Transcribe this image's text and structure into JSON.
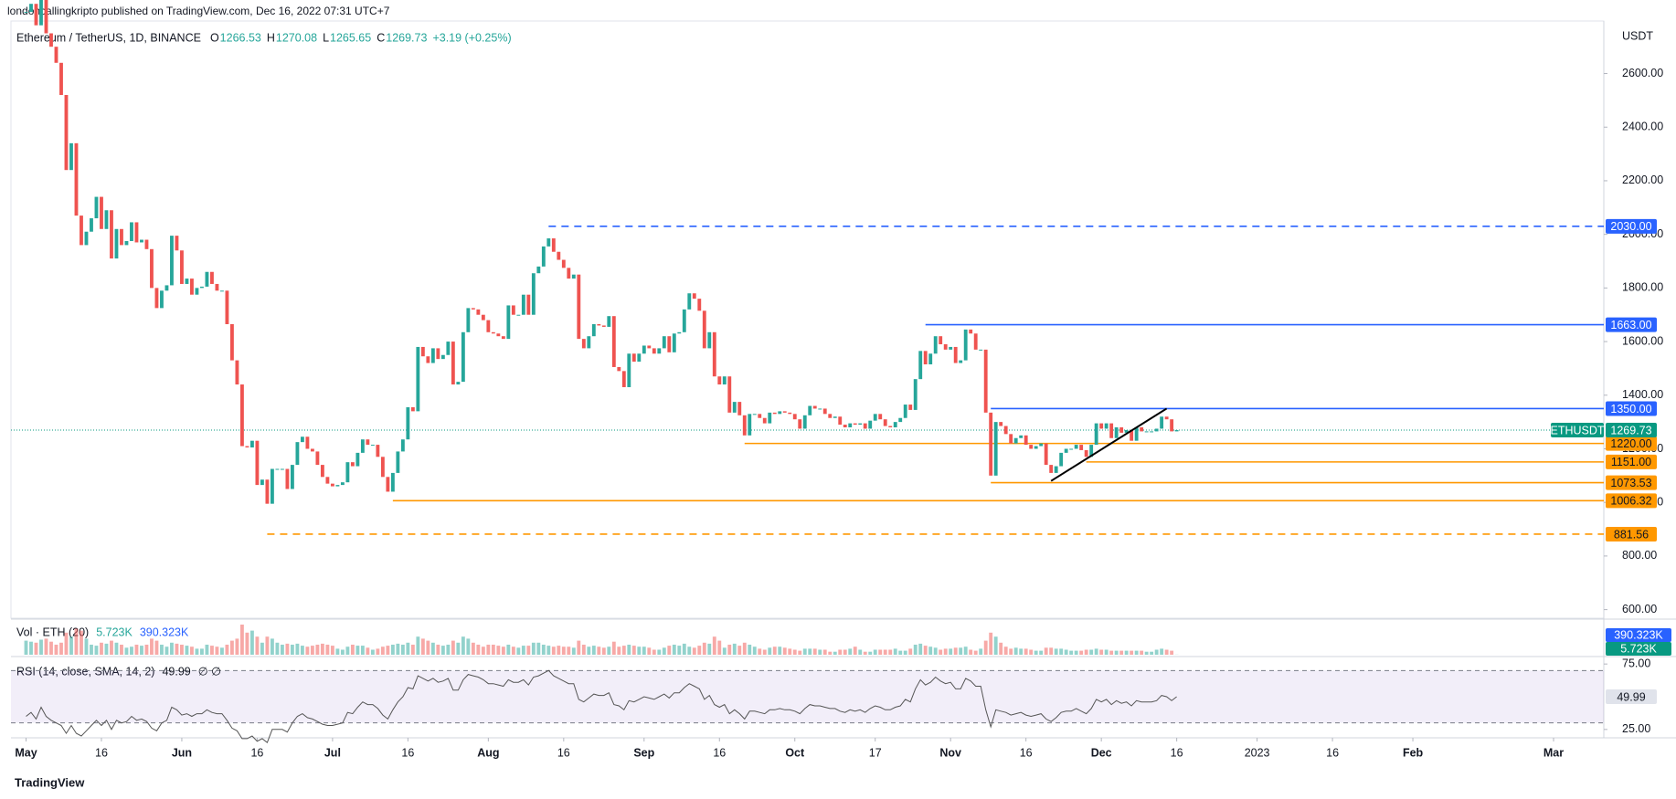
{
  "header": {
    "publisher": "londoncallingkripto published on TradingView.com, Dec 16, 2022 07:31 UTC+7",
    "footer": "TradingView"
  },
  "chart_data": {
    "type": "candlestick",
    "title": "Ethereum / TetherUS, 1D, BINANCE",
    "ohlc_legend": [
      {
        "label": "O",
        "value": "1266.53"
      },
      {
        "label": "H",
        "value": "1270.08"
      },
      {
        "label": "L",
        "value": "1265.65"
      },
      {
        "label": "C",
        "value": "1269.73"
      }
    ],
    "change": "+3.19 (+0.25%)",
    "currency": "USDT",
    "symbol": "ETHUSDT",
    "last_price": 1269.73,
    "up_color": "#26a69a",
    "down_color": "#ef5350",
    "closes": [
      2830,
      2860,
      2780,
      2940,
      2750,
      2700,
      2640,
      2520,
      2240,
      2340,
      2070,
      1960,
      2010,
      2060,
      2140,
      2020,
      2090,
      1910,
      2020,
      1960,
      1975,
      2045,
      1970,
      1980,
      1945,
      1800,
      1725,
      1790,
      1810,
      1995,
      1940,
      1815,
      1835,
      1775,
      1800,
      1805,
      1860,
      1815,
      1790,
      1790,
      1665,
      1530,
      1440,
      1210,
      1205,
      1230,
      1065,
      1085,
      995,
      1125,
      1125,
      1125,
      1050,
      1140,
      1225,
      1245,
      1200,
      1190,
      1140,
      1095,
      1070,
      1060,
      1065,
      1075,
      1150,
      1135,
      1185,
      1235,
      1215,
      1215,
      1170,
      1095,
      1040,
      1110,
      1190,
      1235,
      1355,
      1340,
      1580,
      1545,
      1520,
      1575,
      1535,
      1550,
      1600,
      1440,
      1450,
      1635,
      1725,
      1720,
      1700,
      1680,
      1635,
      1630,
      1620,
      1610,
      1735,
      1700,
      1700,
      1775,
      1700,
      1855,
      1880,
      1955,
      1985,
      1935,
      1905,
      1875,
      1835,
      1850,
      1610,
      1575,
      1620,
      1665,
      1660,
      1655,
      1695,
      1505,
      1490,
      1430,
      1555,
      1525,
      1555,
      1585,
      1575,
      1555,
      1575,
      1620,
      1560,
      1630,
      1635,
      1720,
      1780,
      1760,
      1715,
      1575,
      1635,
      1470,
      1440,
      1470,
      1335,
      1375,
      1325,
      1250,
      1330,
      1330,
      1315,
      1295,
      1335,
      1330,
      1340,
      1335,
      1330,
      1310,
      1275,
      1325,
      1360,
      1350,
      1350,
      1330,
      1315,
      1320,
      1290,
      1280,
      1295,
      1290,
      1295,
      1275,
      1305,
      1330,
      1310,
      1285,
      1280,
      1300,
      1315,
      1365,
      1345,
      1460,
      1565,
      1515,
      1555,
      1620,
      1590,
      1570,
      1580,
      1520,
      1530,
      1645,
      1630,
      1570,
      1570,
      1335,
      1100,
      1300,
      1285,
      1255,
      1220,
      1240,
      1250,
      1215,
      1200,
      1210,
      1220,
      1140,
      1110,
      1135,
      1185,
      1200,
      1200,
      1215,
      1195,
      1170,
      1215,
      1295,
      1275,
      1295,
      1240,
      1280,
      1260,
      1270,
      1230,
      1280,
      1265,
      1265,
      1265,
      1275,
      1320,
      1310,
      1265,
      1269.73
    ],
    "xlim": [
      -3,
      314
    ],
    "xticks": [
      {
        "value": 0,
        "label": "May"
      },
      {
        "value": 15,
        "label": "16"
      },
      {
        "value": 31,
        "label": "Jun"
      },
      {
        "value": 46,
        "label": "16"
      },
      {
        "value": 61,
        "label": "Jul"
      },
      {
        "value": 76,
        "label": "16"
      },
      {
        "value": 92,
        "label": "Aug"
      },
      {
        "value": 107,
        "label": "16"
      },
      {
        "value": 123,
        "label": "Sep"
      },
      {
        "value": 138,
        "label": "16"
      },
      {
        "value": 153,
        "label": "Oct"
      },
      {
        "value": 169,
        "label": "17"
      },
      {
        "value": 184,
        "label": "Nov"
      },
      {
        "value": 199,
        "label": "16"
      },
      {
        "value": 214,
        "label": "Dec"
      },
      {
        "value": 229,
        "label": "16"
      },
      {
        "value": 245,
        "label": "2023"
      },
      {
        "value": 260,
        "label": "16"
      },
      {
        "value": 276,
        "label": "Feb"
      },
      {
        "value": 304,
        "label": "Mar"
      }
    ],
    "ylim": [
      568,
      2796
    ],
    "yticks": [
      {
        "value": 600,
        "label": "600.00"
      },
      {
        "value": 800,
        "label": "800.00"
      },
      {
        "value": 1000,
        "label": "1000.00"
      },
      {
        "value": 1200,
        "label": "1200.00"
      },
      {
        "value": 1400,
        "label": "1400.00"
      },
      {
        "value": 1600,
        "label": "1600.00"
      },
      {
        "value": 1800,
        "label": "1800.00"
      },
      {
        "value": 2000,
        "label": "2000.00"
      },
      {
        "value": 2200,
        "label": "2200.00"
      },
      {
        "value": 2400,
        "label": "2400.00"
      },
      {
        "value": 2600,
        "label": "2600.00"
      }
    ],
    "levels": [
      {
        "value": 2030,
        "label": "2030.00",
        "from_day": 104,
        "color": "#2962ff",
        "dashed": true
      },
      {
        "value": 1663,
        "label": "1663.00",
        "from_day": 179,
        "color": "#2962ff",
        "dashed": false
      },
      {
        "value": 1350,
        "label": "1350.00",
        "from_day": 192,
        "color": "#2962ff",
        "dashed": false
      },
      {
        "value": 1220,
        "label": "1220.00",
        "from_day": 143,
        "color": "#ff9800",
        "dashed": false
      },
      {
        "value": 1151,
        "label": "1151.00",
        "from_day": 211,
        "color": "#ff9800",
        "dashed": false
      },
      {
        "value": 1073.53,
        "label": "1073.53",
        "from_day": 192,
        "color": "#ff9800",
        "dashed": false
      },
      {
        "value": 1006.32,
        "label": "1006.32",
        "from_day": 73,
        "color": "#ff9800",
        "dashed": false
      },
      {
        "value": 881.56,
        "label": "881.56",
        "from_day": 48,
        "color": "#ff9800",
        "dashed": true
      }
    ],
    "trendline": {
      "x": [
        204,
        227
      ],
      "y": [
        1080,
        1350
      ],
      "color": "#000000"
    },
    "volume": {
      "title": "Vol · ETH (20)",
      "last_label": "5.723K",
      "ma": 390.323,
      "ma_label": "390.323K",
      "ylim": [
        0,
        1500
      ],
      "values": [
        700,
        650,
        600,
        750,
        800,
        650,
        500,
        600,
        1100,
        900,
        1300,
        1200,
        800,
        500,
        450,
        600,
        550,
        700,
        600,
        500,
        350,
        400,
        500,
        450,
        500,
        800,
        700,
        500,
        400,
        600,
        550,
        500,
        450,
        400,
        300,
        300,
        500,
        450,
        400,
        350,
        500,
        700,
        800,
        1500,
        1100,
        1200,
        900,
        600,
        900,
        800,
        600,
        500,
        550,
        500,
        550,
        450,
        400,
        450,
        500,
        550,
        500,
        450,
        300,
        250,
        400,
        500,
        450,
        450,
        350,
        250,
        300,
        400,
        450,
        500,
        550,
        500,
        600,
        500,
        900,
        800,
        700,
        600,
        500,
        450,
        500,
        700,
        600,
        900,
        800,
        600,
        500,
        400,
        500,
        500,
        450,
        400,
        500,
        400,
        350,
        450,
        450,
        600,
        600,
        500,
        450,
        400,
        450,
        400,
        400,
        350,
        700,
        500,
        400,
        450,
        400,
        350,
        400,
        650,
        400,
        450,
        500,
        450,
        400,
        400,
        350,
        250,
        250,
        350,
        450,
        500,
        450,
        550,
        400,
        350,
        450,
        600,
        550,
        900,
        700,
        350,
        500,
        550,
        450,
        600,
        500,
        400,
        300,
        250,
        350,
        400,
        400,
        350,
        300,
        250,
        200,
        300,
        300,
        300,
        250,
        250,
        150,
        150,
        250,
        250,
        300,
        400,
        250,
        150,
        150,
        250,
        250,
        250,
        250,
        300,
        200,
        200,
        300,
        500,
        550,
        450,
        400,
        350,
        250,
        300,
        300,
        350,
        350,
        400,
        250,
        200,
        300,
        700,
        1100,
        900,
        600,
        400,
        300,
        350,
        300,
        300,
        250,
        200,
        200,
        350,
        350,
        300,
        300,
        250,
        200,
        200,
        200,
        250,
        250,
        300,
        250,
        250,
        200,
        200,
        200,
        200,
        200,
        200,
        200,
        150,
        150,
        250,
        300,
        250,
        200,
        5.723
      ]
    },
    "rsi": {
      "title": "RSI (14, close, SMA, 14, 2)",
      "na_marks": "∅ ∅",
      "ylim": [
        20,
        80
      ],
      "bands": [
        30,
        70
      ],
      "yticks": [
        {
          "value": 75,
          "label": "75.00"
        },
        {
          "value": 25,
          "label": "25.00"
        }
      ],
      "values": [
        35,
        38,
        33,
        42,
        35,
        32,
        30,
        28,
        22,
        28,
        22,
        20,
        24,
        28,
        32,
        28,
        32,
        25,
        32,
        30,
        31,
        35,
        32,
        33,
        31,
        26,
        24,
        30,
        32,
        42,
        40,
        36,
        37,
        35,
        37,
        37,
        40,
        38,
        37,
        37,
        32,
        26,
        24,
        18,
        18,
        20,
        16,
        18,
        15,
        25,
        25,
        25,
        23,
        30,
        35,
        37,
        34,
        33,
        31,
        29,
        28,
        28,
        29,
        30,
        38,
        37,
        42,
        46,
        44,
        44,
        41,
        36,
        33,
        40,
        46,
        50,
        57,
        56,
        66,
        64,
        62,
        64,
        61,
        62,
        64,
        55,
        55,
        63,
        67,
        66,
        65,
        63,
        60,
        60,
        59,
        58,
        63,
        61,
        61,
        63,
        59,
        65,
        66,
        68,
        70,
        66,
        64,
        62,
        60,
        60,
        48,
        46,
        49,
        52,
        51,
        51,
        53,
        44,
        43,
        40,
        47,
        46,
        48,
        50,
        49,
        48,
        50,
        52,
        49,
        53,
        53,
        57,
        60,
        58,
        56,
        48,
        51,
        44,
        42,
        44,
        37,
        40,
        37,
        33,
        39,
        39,
        38,
        37,
        40,
        40,
        41,
        40,
        40,
        39,
        37,
        41,
        44,
        43,
        43,
        42,
        41,
        41,
        39,
        38,
        40,
        39,
        40,
        38,
        41,
        43,
        42,
        40,
        40,
        42,
        43,
        48,
        46,
        56,
        63,
        59,
        61,
        65,
        62,
        60,
        61,
        56,
        56,
        64,
        62,
        58,
        58,
        40,
        27,
        40,
        39,
        38,
        36,
        37,
        38,
        36,
        35,
        36,
        37,
        33,
        31,
        34,
        38,
        39,
        39,
        41,
        39,
        37,
        41,
        48,
        46,
        48,
        44,
        47,
        45,
        46,
        43,
        47,
        46,
        46,
        46,
        47,
        51,
        50,
        47,
        49.99
      ]
    }
  }
}
